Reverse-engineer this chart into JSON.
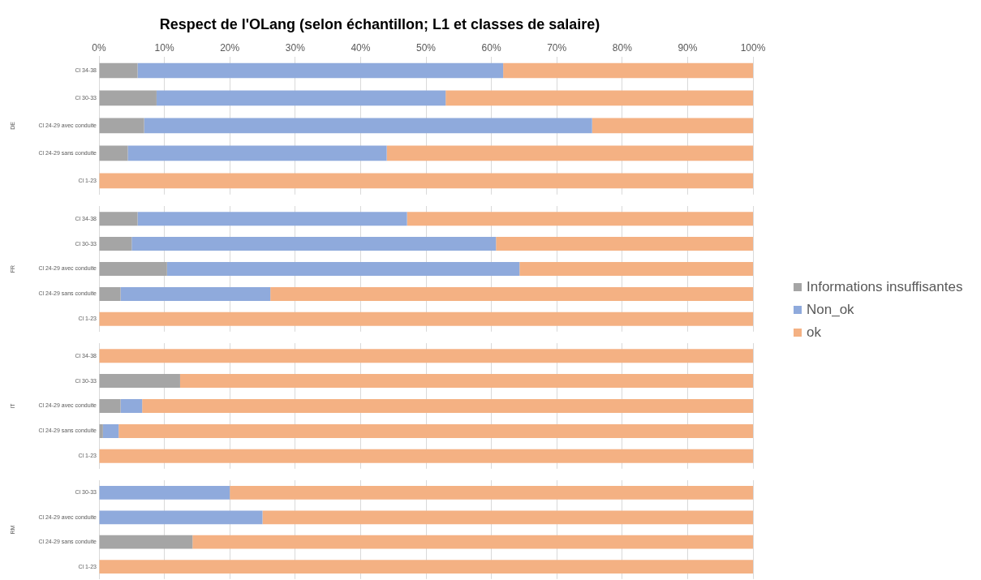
{
  "chart_data": [
    {
      "type": "bar",
      "orientation": "horizontal",
      "stacked": true,
      "title": "Respect de l'OLang (selon échantillon; L1 et classes de salaire)",
      "ylabel": "DE",
      "categories": [
        "Cl 34-38",
        "Cl 30-33",
        "Cl 24-29 avec conduite",
        "Cl 24-29 sans conduite",
        "Cl 1-23"
      ],
      "xlim": [
        0,
        100
      ],
      "xticks": [
        {
          "value": 0,
          "label": "0%"
        },
        {
          "value": 10,
          "label": "10%"
        },
        {
          "value": 20,
          "label": "20%"
        },
        {
          "value": 30,
          "label": "30%"
        },
        {
          "value": 40,
          "label": "40%"
        },
        {
          "value": 50,
          "label": "50%"
        },
        {
          "value": 60,
          "label": "60%"
        },
        {
          "value": 70,
          "label": "70%"
        },
        {
          "value": 80,
          "label": "80%"
        },
        {
          "value": 90,
          "label": "90%"
        },
        {
          "value": 100,
          "label": "100%"
        }
      ],
      "grid": "x",
      "series": [
        {
          "color": "#a5a5a5",
          "values": [
            5.9,
            8.8,
            6.9,
            4.4,
            0
          ]
        },
        {
          "color": "#8faadc",
          "values": [
            55.9,
            44.2,
            68.5,
            39.6,
            0
          ]
        },
        {
          "color": "#f4b183",
          "values": [
            38.2,
            47.0,
            24.6,
            56.0,
            100
          ]
        }
      ]
    },
    {
      "type": "bar",
      "orientation": "horizontal",
      "stacked": true,
      "ylabel": "FR",
      "categories": [
        "Cl 34-38",
        "Cl 30-33",
        "Cl 24-29 avec conduite",
        "Cl 24-29 sans conduite",
        "Cl 1-23"
      ],
      "xlim": [
        0,
        100
      ],
      "xticks": [
        {
          "value": 0,
          "label": null
        },
        {
          "value": 10,
          "label": null
        },
        {
          "value": 20,
          "label": null
        },
        {
          "value": 30,
          "label": null
        },
        {
          "value": 40,
          "label": null
        },
        {
          "value": 50,
          "label": null
        },
        {
          "value": 60,
          "label": null
        },
        {
          "value": 70,
          "label": null
        },
        {
          "value": 80,
          "label": null
        },
        {
          "value": 90,
          "label": null
        },
        {
          "value": 100,
          "label": null
        }
      ],
      "grid": "x",
      "tick_labels": "y",
      "legend": "right",
      "series": [
        {
          "name": "Informations insuffisantes",
          "color": "#a5a5a5",
          "values": [
            5.9,
            5.0,
            10.4,
            3.3,
            0
          ]
        },
        {
          "name": "Non_ok",
          "color": "#8faadc",
          "values": [
            41.2,
            55.7,
            53.9,
            22.9,
            0
          ]
        },
        {
          "name": "ok",
          "color": "#f4b183",
          "values": [
            52.9,
            39.3,
            35.7,
            73.8,
            100
          ]
        }
      ]
    },
    {
      "type": "bar",
      "orientation": "horizontal",
      "stacked": true,
      "ylabel": "IT",
      "categories": [
        "Cl 34-38",
        "Cl 30-33",
        "Cl 24-29 avec conduite",
        "Cl 24-29 sans conduite",
        "Cl 1-23"
      ],
      "xlim": [
        0,
        100
      ],
      "xticks": [
        {
          "value": 0,
          "label": null
        },
        {
          "value": 10,
          "label": null
        },
        {
          "value": 20,
          "label": null
        },
        {
          "value": 30,
          "label": null
        },
        {
          "value": 40,
          "label": null
        },
        {
          "value": 50,
          "label": null
        },
        {
          "value": 60,
          "label": null
        },
        {
          "value": 70,
          "label": null
        },
        {
          "value": 80,
          "label": null
        },
        {
          "value": 90,
          "label": null
        },
        {
          "value": 100,
          "label": null
        }
      ],
      "grid": "x",
      "tick_labels": "y",
      "series": [
        {
          "color": "#a5a5a5",
          "values": [
            0,
            12.4,
            3.3,
            0.6,
            0
          ]
        },
        {
          "color": "#8faadc",
          "values": [
            0,
            0,
            3.3,
            2.4,
            0
          ]
        },
        {
          "color": "#f4b183",
          "values": [
            100,
            87.6,
            93.4,
            97.0,
            100
          ]
        }
      ]
    },
    {
      "type": "bar",
      "orientation": "horizontal",
      "stacked": true,
      "ylabel": "RM",
      "categories": [
        "Cl 30-33",
        "Cl 24-29 avec conduite",
        "Cl 24-29 sans conduite",
        "Cl 1-23"
      ],
      "xlim": [
        0,
        100
      ],
      "xticks": [
        {
          "value": 0,
          "label": null
        },
        {
          "value": 10,
          "label": null
        },
        {
          "value": 20,
          "label": null
        },
        {
          "value": 30,
          "label": null
        },
        {
          "value": 40,
          "label": null
        },
        {
          "value": 50,
          "label": null
        },
        {
          "value": 60,
          "label": null
        },
        {
          "value": 70,
          "label": null
        },
        {
          "value": 80,
          "label": null
        },
        {
          "value": 90,
          "label": null
        },
        {
          "value": 100,
          "label": null
        }
      ],
      "grid": "x",
      "tick_labels": "y",
      "series": [
        {
          "color": "#a5a5a5",
          "values": [
            0,
            0,
            14.3,
            0
          ]
        },
        {
          "color": "#8faadc",
          "values": [
            20,
            25,
            0,
            0
          ]
        },
        {
          "color": "#f4b183",
          "values": [
            80,
            75,
            85.7,
            100
          ]
        }
      ]
    }
  ]
}
